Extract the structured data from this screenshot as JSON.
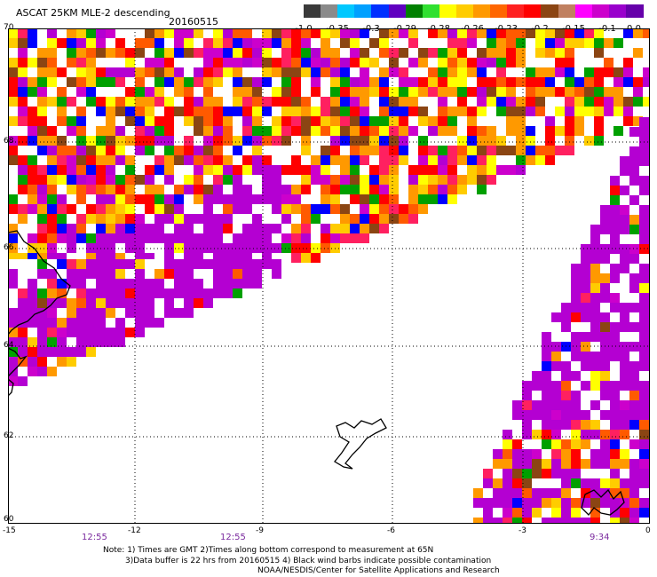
{
  "header": {
    "title": "ASCAT 25KM MLE-2 descending",
    "date": "20160515"
  },
  "colorbar": {
    "colors": [
      "#3a3a3a",
      "#8a8a8a",
      "#00c8ff",
      "#00a0ff",
      "#0030ff",
      "#6000c0",
      "#008000",
      "#30e030",
      "#ffff00",
      "#ffcc00",
      "#ff9900",
      "#ff6600",
      "#ff2020",
      "#ff0000",
      "#8b4513",
      "#c08060",
      "#ff00ff",
      "#cc00cc",
      "#9900cc",
      "#6600aa"
    ],
    "labels": [
      "-1.0",
      "-0.35",
      "-0.3",
      "-0.29",
      "-0.28",
      "-0.26",
      "-0.23",
      "-0.2",
      "-0.15",
      "-0.1",
      "0.0"
    ]
  },
  "axes": {
    "lat_labels": [
      "70",
      "68",
      "66",
      "64",
      "62",
      "60"
    ],
    "lon_labels": [
      "-15",
      "-12",
      "-9",
      "-6",
      "-3",
      "0"
    ],
    "time_labels": [
      "12:55",
      "12:55",
      "9:34"
    ]
  },
  "notes": {
    "line1": "Note: 1) Times are GMT 2)Times along bottom correspond to measurement at 65N",
    "line2": "3)Data buffer is 22 hrs from 20160515 4) Black wind barbs indicate possible contamination",
    "line3": "NOAA/NESDIS/Center for Satellite Applications and Research"
  },
  "map_colors": {
    "purple": "#b400d2",
    "palette": [
      "#ff0000",
      "#ff5a00",
      "#ff9900",
      "#ffcc00",
      "#ffff00",
      "#ffffff",
      "#8b4513",
      "#cc00cc",
      "#b400d2",
      "#0000ff",
      "#00a000",
      "#00c8ff",
      "#ff2060"
    ]
  }
}
